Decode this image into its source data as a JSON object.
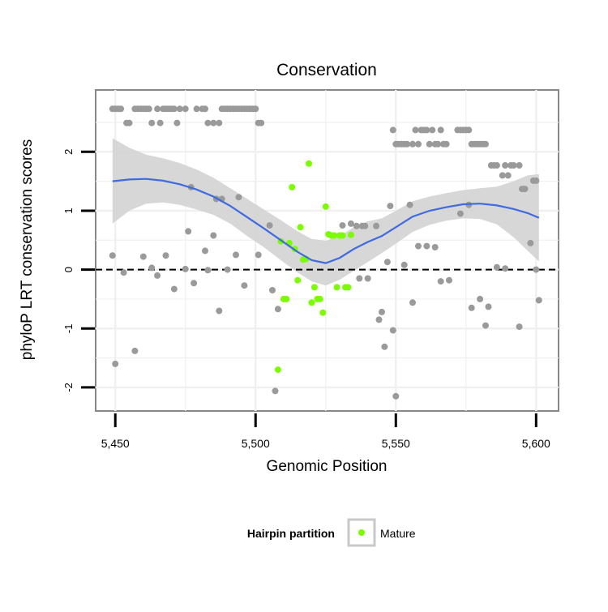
{
  "chart_data": {
    "type": "scatter",
    "title": "Conservation",
    "xlabel": "Genomic Position",
    "ylabel": "phyloP LRT conservation scores",
    "xlim": [
      5443,
      5608
    ],
    "ylim": [
      -2.4,
      3.05
    ],
    "x_ticks": [
      5450,
      5500,
      5550,
      5600
    ],
    "x_tick_labels": [
      "5,450",
      "5,500",
      "5,550",
      "5,600"
    ],
    "y_ticks": [
      -2,
      -1,
      0,
      1,
      2
    ],
    "y_tick_labels": [
      "-2",
      "-1",
      "0",
      "1",
      "2"
    ],
    "grid": true,
    "reference_line": {
      "y": 0,
      "style": "dashed"
    },
    "legend": {
      "title": "Hairpin partition",
      "position": "bottom",
      "entries": [
        {
          "label": "Mature",
          "color": "#7cfc00"
        }
      ]
    },
    "colors": {
      "other": "#9a9a9a",
      "mature": "#7cfc00",
      "smooth": "#3f6ae0",
      "band": "#d3d3d3"
    },
    "series": [
      {
        "partition": "other",
        "points": [
          [
            5449,
            2.73
          ],
          [
            5450,
            2.73
          ],
          [
            5451,
            2.73
          ],
          [
            5452,
            2.73
          ],
          [
            5454,
            2.49
          ],
          [
            5455,
            2.49
          ],
          [
            5457,
            2.73
          ],
          [
            5458,
            2.73
          ],
          [
            5459,
            2.73
          ],
          [
            5460,
            2.73
          ],
          [
            5461,
            2.73
          ],
          [
            5462,
            2.73
          ],
          [
            5463,
            2.49
          ],
          [
            5465,
            2.73
          ],
          [
            5466,
            2.49
          ],
          [
            5467,
            2.73
          ],
          [
            5468,
            2.73
          ],
          [
            5469,
            2.73
          ],
          [
            5470,
            2.73
          ],
          [
            5471,
            2.73
          ],
          [
            5472,
            2.49
          ],
          [
            5473,
            2.73
          ],
          [
            5475,
            2.73
          ],
          [
            5479,
            2.73
          ],
          [
            5481,
            2.73
          ],
          [
            5482,
            2.73
          ],
          [
            5483,
            2.49
          ],
          [
            5485,
            2.49
          ],
          [
            5487,
            2.49
          ],
          [
            5488,
            2.73
          ],
          [
            5489,
            2.73
          ],
          [
            5490,
            2.73
          ],
          [
            5491,
            2.73
          ],
          [
            5492,
            2.73
          ],
          [
            5493,
            2.73
          ],
          [
            5494,
            2.73
          ],
          [
            5495,
            2.73
          ],
          [
            5496,
            2.73
          ],
          [
            5497,
            2.73
          ],
          [
            5498,
            2.73
          ],
          [
            5499,
            2.73
          ],
          [
            5500,
            2.73
          ],
          [
            5501,
            2.49
          ],
          [
            5502,
            2.49
          ],
          [
            5549,
            2.37
          ],
          [
            5550,
            2.13
          ],
          [
            5551,
            2.13
          ],
          [
            5552,
            2.13
          ],
          [
            5553,
            2.13
          ],
          [
            5554,
            2.13
          ],
          [
            5556,
            2.13
          ],
          [
            5557,
            2.37
          ],
          [
            5558,
            2.13
          ],
          [
            5559,
            2.37
          ],
          [
            5560,
            2.37
          ],
          [
            5561,
            2.37
          ],
          [
            5562,
            2.13
          ],
          [
            5563,
            2.37
          ],
          [
            5564,
            2.13
          ],
          [
            5565,
            2.13
          ],
          [
            5566,
            2.37
          ],
          [
            5567,
            2.13
          ],
          [
            5568,
            2.13
          ],
          [
            5572,
            2.37
          ],
          [
            5573,
            2.37
          ],
          [
            5574,
            2.37
          ],
          [
            5575,
            2.37
          ],
          [
            5576,
            2.37
          ],
          [
            5577,
            2.13
          ],
          [
            5578,
            2.13
          ],
          [
            5579,
            2.13
          ],
          [
            5580,
            2.13
          ],
          [
            5581,
            2.13
          ],
          [
            5582,
            2.13
          ],
          [
            5584,
            1.77
          ],
          [
            5585,
            1.77
          ],
          [
            5586,
            1.77
          ],
          [
            5588,
            1.6
          ],
          [
            5589,
            1.77
          ],
          [
            5590,
            1.6
          ],
          [
            5591,
            1.77
          ],
          [
            5592,
            1.77
          ],
          [
            5594,
            1.77
          ],
          [
            5595,
            1.37
          ],
          [
            5596,
            1.37
          ],
          [
            5599,
            1.51
          ],
          [
            5600,
            1.51
          ],
          [
            5449,
            0.24
          ],
          [
            5450,
            -1.6
          ],
          [
            5453,
            -0.05
          ],
          [
            5457,
            -1.38
          ],
          [
            5460,
            0.22
          ],
          [
            5463,
            0.03
          ],
          [
            5465,
            -0.1
          ],
          [
            5468,
            0.24
          ],
          [
            5471,
            -0.33
          ],
          [
            5475,
            0.01
          ],
          [
            5476,
            0.65
          ],
          [
            5477,
            1.4
          ],
          [
            5478,
            -0.23
          ],
          [
            5482,
            0.32
          ],
          [
            5483,
            -0.01
          ],
          [
            5485,
            0.58
          ],
          [
            5486,
            1.2
          ],
          [
            5487,
            -0.7
          ],
          [
            5488,
            1.2
          ],
          [
            5490,
            0.0
          ],
          [
            5493,
            0.25
          ],
          [
            5494,
            1.23
          ],
          [
            5496,
            -0.27
          ],
          [
            5501,
            0.25
          ],
          [
            5505,
            0.75
          ],
          [
            5506,
            -0.35
          ],
          [
            5507,
            -2.06
          ],
          [
            5508,
            -0.67
          ],
          [
            5531,
            0.75
          ],
          [
            5534,
            0.78
          ],
          [
            5536,
            0.74
          ],
          [
            5537,
            -0.15
          ],
          [
            5538,
            0.74
          ],
          [
            5539,
            0.74
          ],
          [
            5540,
            -0.15
          ],
          [
            5543,
            0.74
          ],
          [
            5544,
            -0.85
          ],
          [
            5545,
            -0.72
          ],
          [
            5546,
            -1.31
          ],
          [
            5547,
            0.13
          ],
          [
            5548,
            1.08
          ],
          [
            5549,
            -1.03
          ],
          [
            5550,
            -2.15
          ],
          [
            5553,
            0.08
          ],
          [
            5555,
            1.1
          ],
          [
            5556,
            -0.56
          ],
          [
            5558,
            0.4
          ],
          [
            5561,
            0.4
          ],
          [
            5564,
            0.38
          ],
          [
            5566,
            -0.2
          ],
          [
            5569,
            -0.18
          ],
          [
            5573,
            0.95
          ],
          [
            5576,
            1.1
          ],
          [
            5577,
            -0.65
          ],
          [
            5580,
            -0.5
          ],
          [
            5582,
            -0.95
          ],
          [
            5583,
            -0.63
          ],
          [
            5586,
            0.04
          ],
          [
            5589,
            0.02
          ],
          [
            5594,
            -0.97
          ],
          [
            5598,
            0.45
          ],
          [
            5600,
            0.0
          ],
          [
            5601,
            -0.52
          ]
        ]
      },
      {
        "partition": "mature",
        "points": [
          [
            5508,
            -1.7
          ],
          [
            5509,
            0.48
          ],
          [
            5510,
            -0.5
          ],
          [
            5511,
            -0.5
          ],
          [
            5512,
            0.45
          ],
          [
            5513,
            1.4
          ],
          [
            5514,
            0.35
          ],
          [
            5515,
            -0.18
          ],
          [
            5516,
            0.72
          ],
          [
            5517,
            0.17
          ],
          [
            5518,
            0.18
          ],
          [
            5519,
            1.8
          ],
          [
            5520,
            -0.56
          ],
          [
            5521,
            -0.3
          ],
          [
            5522,
            -0.5
          ],
          [
            5523,
            -0.5
          ],
          [
            5524,
            -0.73
          ],
          [
            5525,
            1.07
          ],
          [
            5526,
            0.6
          ],
          [
            5527,
            0.58
          ],
          [
            5528,
            0.58
          ],
          [
            5529,
            -0.3
          ],
          [
            5530,
            0.58
          ],
          [
            5531,
            0.58
          ],
          [
            5532,
            -0.3
          ],
          [
            5533,
            -0.3
          ],
          [
            5534,
            0.59
          ]
        ]
      }
    ],
    "smooth": {
      "method": "loess",
      "points": [
        [
          5449,
          1.5
        ],
        [
          5455,
          1.53
        ],
        [
          5461,
          1.54
        ],
        [
          5467,
          1.51
        ],
        [
          5473,
          1.45
        ],
        [
          5479,
          1.36
        ],
        [
          5485,
          1.24
        ],
        [
          5491,
          1.08
        ],
        [
          5497,
          0.89
        ],
        [
          5503,
          0.7
        ],
        [
          5509,
          0.5
        ],
        [
          5515,
          0.3
        ],
        [
          5520,
          0.16
        ],
        [
          5525,
          0.11
        ],
        [
          5530,
          0.2
        ],
        [
          5535,
          0.35
        ],
        [
          5540,
          0.47
        ],
        [
          5545,
          0.57
        ],
        [
          5550,
          0.72
        ],
        [
          5556,
          0.9
        ],
        [
          5562,
          1.0
        ],
        [
          5568,
          1.06
        ],
        [
          5574,
          1.11
        ],
        [
          5580,
          1.12
        ],
        [
          5586,
          1.09
        ],
        [
          5592,
          1.03
        ],
        [
          5597,
          0.96
        ],
        [
          5601,
          0.88
        ]
      ],
      "lower": [
        [
          5449,
          0.78
        ],
        [
          5455,
          1.0
        ],
        [
          5461,
          1.12
        ],
        [
          5467,
          1.14
        ],
        [
          5473,
          1.1
        ],
        [
          5479,
          1.02
        ],
        [
          5485,
          0.93
        ],
        [
          5491,
          0.78
        ],
        [
          5497,
          0.57
        ],
        [
          5503,
          0.38
        ],
        [
          5509,
          0.16
        ],
        [
          5515,
          -0.05
        ],
        [
          5520,
          -0.2
        ],
        [
          5525,
          -0.27
        ],
        [
          5530,
          -0.17
        ],
        [
          5535,
          -0.02
        ],
        [
          5540,
          0.13
        ],
        [
          5545,
          0.28
        ],
        [
          5550,
          0.44
        ],
        [
          5556,
          0.64
        ],
        [
          5562,
          0.76
        ],
        [
          5568,
          0.83
        ],
        [
          5574,
          0.87
        ],
        [
          5580,
          0.86
        ],
        [
          5586,
          0.77
        ],
        [
          5592,
          0.55
        ],
        [
          5597,
          0.32
        ],
        [
          5601,
          0.14
        ]
      ],
      "upper": [
        [
          5449,
          2.23
        ],
        [
          5455,
          2.07
        ],
        [
          5461,
          1.95
        ],
        [
          5467,
          1.89
        ],
        [
          5473,
          1.81
        ],
        [
          5479,
          1.7
        ],
        [
          5485,
          1.56
        ],
        [
          5491,
          1.38
        ],
        [
          5497,
          1.2
        ],
        [
          5503,
          1.02
        ],
        [
          5509,
          0.84
        ],
        [
          5515,
          0.65
        ],
        [
          5520,
          0.52
        ],
        [
          5525,
          0.49
        ],
        [
          5530,
          0.57
        ],
        [
          5535,
          0.72
        ],
        [
          5540,
          0.82
        ],
        [
          5545,
          0.87
        ],
        [
          5550,
          1.0
        ],
        [
          5556,
          1.16
        ],
        [
          5562,
          1.24
        ],
        [
          5568,
          1.3
        ],
        [
          5574,
          1.35
        ],
        [
          5580,
          1.38
        ],
        [
          5586,
          1.41
        ],
        [
          5592,
          1.5
        ],
        [
          5597,
          1.6
        ],
        [
          5601,
          1.62
        ]
      ]
    }
  }
}
